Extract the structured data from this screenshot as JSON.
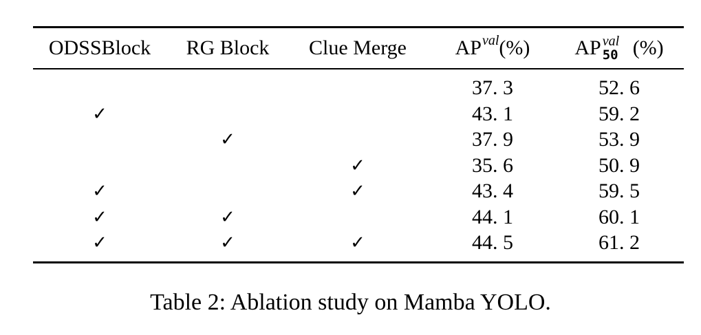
{
  "table": {
    "headers": {
      "odss": "ODSSBlock",
      "rg": "RG Block",
      "clue": "Clue Merge",
      "ap_base": "AP",
      "ap_sup": "val",
      "ap_unit": "(%)",
      "ap50_base": "AP",
      "ap50_sup": "val",
      "ap50_sub": "50",
      "ap50_unit": "(%)"
    },
    "check_symbol": "✓",
    "rows": [
      {
        "odss": false,
        "rg": false,
        "clue": false,
        "ap": "37. 3",
        "ap50": "52. 6"
      },
      {
        "odss": true,
        "rg": false,
        "clue": false,
        "ap": "43. 1",
        "ap50": "59. 2"
      },
      {
        "odss": false,
        "rg": true,
        "clue": false,
        "ap": "37. 9",
        "ap50": "53. 9"
      },
      {
        "odss": false,
        "rg": false,
        "clue": true,
        "ap": "35. 6",
        "ap50": "50. 9"
      },
      {
        "odss": true,
        "rg": false,
        "clue": true,
        "ap": "43. 4",
        "ap50": "59. 5"
      },
      {
        "odss": true,
        "rg": true,
        "clue": false,
        "ap": "44. 1",
        "ap50": "60. 1"
      },
      {
        "odss": true,
        "rg": true,
        "clue": true,
        "ap": "44. 5",
        "ap50": "61. 2"
      }
    ]
  },
  "caption": "Table 2: Ablation study on Mamba YOLO."
}
